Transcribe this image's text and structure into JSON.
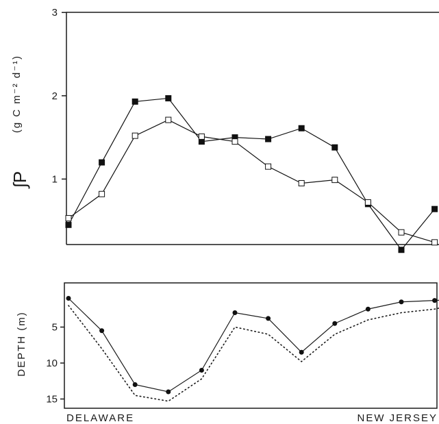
{
  "chart_data": [
    {
      "type": "line",
      "ylabel_symbol": "∫P",
      "ylabel_units": "(g C m⁻² d⁻¹)",
      "yticks": [
        1,
        2,
        3
      ],
      "ylim": [
        0,
        3
      ],
      "xlim": [
        0,
        12
      ],
      "series": [
        {
          "marker": "filled-square",
          "color": "#111111",
          "x": [
            0,
            1,
            2,
            3,
            4,
            5,
            6,
            7,
            8,
            9,
            10,
            11
          ],
          "values": [
            0.45,
            1.2,
            1.93,
            1.97,
            1.45,
            1.5,
            1.48,
            1.61,
            1.38,
            0.7,
            0.15,
            0.64
          ]
        },
        {
          "marker": "open-square",
          "color": "#111111",
          "x": [
            0,
            1,
            2,
            3,
            4,
            5,
            6,
            7,
            8,
            9,
            10,
            11
          ],
          "values": [
            0.53,
            0.82,
            1.52,
            1.71,
            1.51,
            1.45,
            1.15,
            0.95,
            0.99,
            0.72,
            0.36,
            0.24
          ]
        }
      ]
    },
    {
      "type": "line",
      "ylabel": "DEPTH (m)",
      "yticks": [
        5,
        10,
        15
      ],
      "ylim": [
        18,
        0
      ],
      "xlim": [
        0,
        12
      ],
      "xlabel_left": "DELAWARE",
      "xlabel_right": "NEW JERSEY",
      "series": [
        {
          "marker": "filled-circle",
          "style": "solid",
          "x": [
            0,
            1,
            2,
            3,
            4,
            5,
            6,
            7,
            8,
            9,
            10,
            11,
            11.5
          ],
          "values": [
            1,
            5.5,
            13,
            14,
            11,
            3,
            3.8,
            8.5,
            4.5,
            2.5,
            1.5,
            1.3,
            1.2
          ]
        },
        {
          "style": "dotted",
          "x": [
            0,
            1,
            2,
            3,
            4,
            5,
            6,
            7,
            8,
            9,
            10,
            11,
            11.5
          ],
          "values": [
            2,
            8,
            14.5,
            15.3,
            12.2,
            5,
            6,
            9.8,
            6,
            4,
            3,
            2.5,
            2
          ]
        }
      ]
    }
  ]
}
